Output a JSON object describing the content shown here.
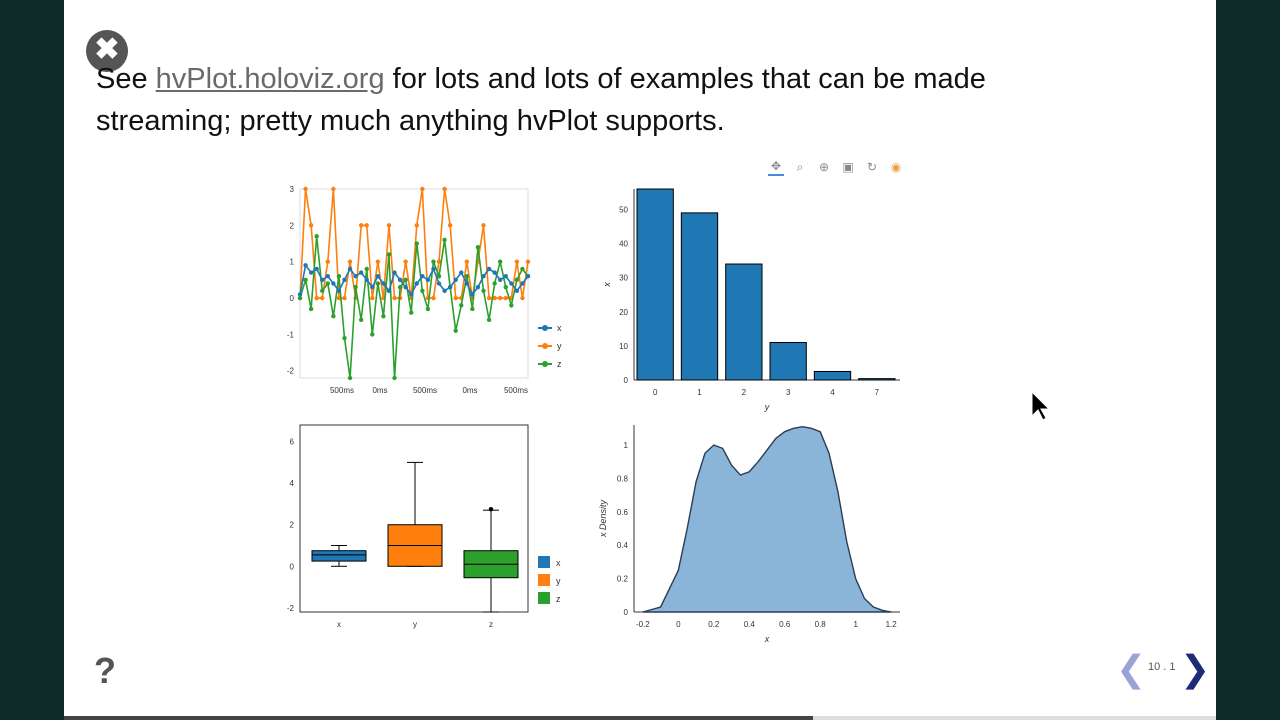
{
  "slide": {
    "close_glyph": "✖",
    "headline_prefix": "See ",
    "headline_link": "hvPlot.holoviz.org",
    "headline_rest": " for lots and lots of examples that can be made streaming; pretty much anything hvPlot supports.",
    "toolbar_icons": [
      "pan-icon",
      "box-zoom-icon",
      "wheel-zoom-icon",
      "save-icon",
      "reset-icon",
      "bokeh-logo-icon"
    ]
  },
  "footer": {
    "help": "?",
    "prev": "❮",
    "next": "❯",
    "slide_number": "10 . 1",
    "progress": 0.65
  },
  "colors": {
    "blue": "#1f77b4",
    "orange": "#ff7f0e",
    "green": "#2ca02c",
    "kde_fill": "#8ab4d8"
  },
  "chart_data": [
    {
      "type": "line",
      "xtick_labels": [
        "500ms",
        "0ms",
        "500ms",
        "0ms",
        "500ms"
      ],
      "yticks": [
        -2,
        -1,
        0,
        1,
        2,
        3
      ],
      "ylim": [
        -2.2,
        3
      ],
      "series": [
        {
          "name": "x",
          "values": [
            0.1,
            0.9,
            0.7,
            0.8,
            0.5,
            0.6,
            0.4,
            0.2,
            0.5,
            0.8,
            0.6,
            0.7,
            0.5,
            0.3,
            0.6,
            0.4,
            0.2,
            0.7,
            0.5,
            0.3,
            0.1,
            0.4,
            0.6,
            0.5,
            0.8,
            0.4,
            0.2,
            0.3,
            0.5,
            0.7,
            0.4,
            0.1,
            0.3,
            0.6,
            0.8,
            0.7,
            0.5,
            0.6,
            0.4,
            0.2,
            0.4,
            0.6
          ]
        },
        {
          "name": "y",
          "values": [
            0,
            3,
            2,
            0,
            0,
            1,
            3,
            0,
            0,
            1,
            0,
            2,
            2,
            0,
            1,
            0,
            2,
            0,
            0,
            1,
            0,
            2,
            3,
            0,
            0,
            1,
            3,
            2,
            0,
            0,
            1,
            0,
            1,
            2,
            0,
            0,
            0,
            0,
            0,
            1,
            0,
            1
          ]
        },
        {
          "name": "z",
          "values": [
            0,
            0.5,
            -0.3,
            1.7,
            0.2,
            0.4,
            -0.5,
            0.6,
            -1.1,
            -2.2,
            0.3,
            -0.6,
            0.8,
            -1,
            0.4,
            -0.5,
            1.2,
            -2.2,
            0.3,
            0.5,
            -0.4,
            1.5,
            0.2,
            -0.3,
            1,
            0.6,
            1.6,
            0.3,
            -0.9,
            -0.2,
            0.6,
            -0.3,
            1.4,
            0.2,
            -0.6,
            0.4,
            1,
            0.3,
            -0.2,
            0.5,
            0.8,
            0.6
          ]
        }
      ]
    },
    {
      "type": "bar",
      "categories": [
        "0",
        "1",
        "2",
        "3",
        "4",
        "7"
      ],
      "values": [
        56,
        49,
        34,
        11,
        2.5,
        0.4
      ],
      "xlabel": "y",
      "ylabel": "x",
      "yticks": [
        0,
        10,
        20,
        30,
        40,
        50
      ],
      "ylim": [
        0,
        56
      ]
    },
    {
      "type": "box",
      "categories": [
        "x",
        "y",
        "z"
      ],
      "boxes": [
        {
          "name": "x",
          "q1": 0.25,
          "median": 0.55,
          "q3": 0.75,
          "whisker_low": 0,
          "whisker_high": 1.0,
          "outliers": []
        },
        {
          "name": "y",
          "q1": 0,
          "median": 1,
          "q3": 2,
          "whisker_low": 0,
          "whisker_high": 5,
          "outliers": []
        },
        {
          "name": "z",
          "q1": -0.55,
          "median": 0.1,
          "q3": 0.75,
          "whisker_low": -2.2,
          "whisker_high": 2.7,
          "outliers": [
            2.75
          ]
        }
      ],
      "yticks": [
        -2,
        0,
        2,
        4,
        6
      ],
      "ylim": [
        -2.2,
        6.8
      ]
    },
    {
      "type": "area",
      "xlabel": "x",
      "ylabel": "x Density",
      "xticks": [
        -0.2,
        0,
        0.2,
        0.4,
        0.6,
        0.8,
        1,
        1.2
      ],
      "yticks": [
        0,
        0.2,
        0.4,
        0.6,
        0.8,
        1
      ],
      "xlim": [
        -0.25,
        1.25
      ],
      "ylim": [
        0,
        1.12
      ],
      "x": [
        -0.2,
        -0.1,
        0,
        0.05,
        0.1,
        0.15,
        0.2,
        0.25,
        0.3,
        0.35,
        0.4,
        0.45,
        0.5,
        0.55,
        0.6,
        0.65,
        0.7,
        0.75,
        0.8,
        0.85,
        0.9,
        0.95,
        1,
        1.05,
        1.1,
        1.15,
        1.2
      ],
      "y": [
        0,
        0.03,
        0.25,
        0.5,
        0.78,
        0.95,
        1.0,
        0.98,
        0.88,
        0.82,
        0.84,
        0.9,
        0.97,
        1.04,
        1.08,
        1.1,
        1.11,
        1.1,
        1.08,
        0.95,
        0.72,
        0.42,
        0.2,
        0.08,
        0.03,
        0.01,
        0
      ]
    }
  ]
}
